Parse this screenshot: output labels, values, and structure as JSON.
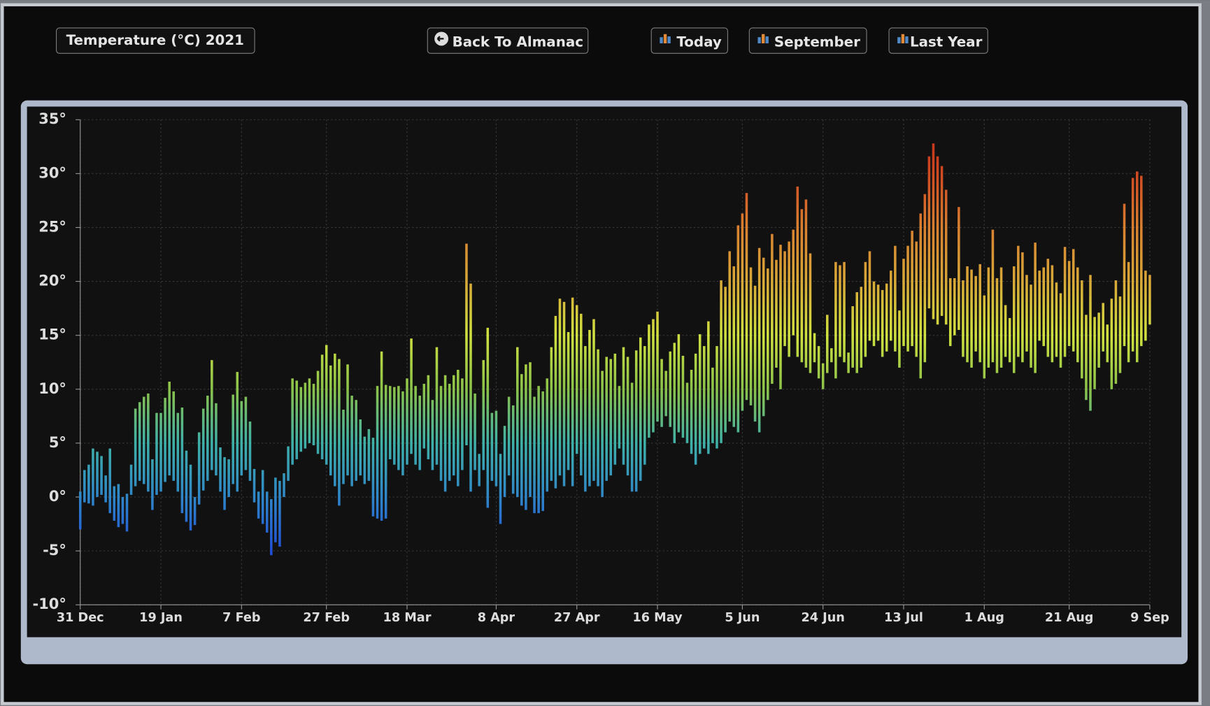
{
  "toolbar": {
    "buttons": [
      "Back To Almanac",
      "Today",
      "September",
      "Last Year"
    ]
  },
  "chart_data": {
    "type": "range-bar",
    "title": "Temperature (°C) 2021",
    "categories": [
      "31 Dec",
      null,
      null,
      null,
      null,
      null,
      null,
      null,
      null,
      null,
      null,
      null,
      null,
      null,
      null,
      null,
      null,
      null,
      null,
      "19 Jan",
      null,
      null,
      null,
      null,
      null,
      null,
      null,
      null,
      null,
      null,
      null,
      null,
      null,
      null,
      null,
      null,
      null,
      null,
      "7 Feb",
      null,
      null,
      null,
      null,
      null,
      null,
      null,
      null,
      null,
      null,
      null,
      null,
      null,
      null,
      null,
      null,
      null,
      null,
      null,
      "27 Feb",
      null,
      null,
      null,
      null,
      null,
      null,
      null,
      null,
      null,
      null,
      null,
      null,
      null,
      null,
      null,
      null,
      null,
      null,
      "18 Mar",
      null,
      null,
      null,
      null,
      null,
      null,
      null,
      null,
      null,
      null,
      null,
      null,
      null,
      null,
      null,
      null,
      null,
      null,
      null,
      null,
      "8 Apr",
      null,
      null,
      null,
      null,
      null,
      null,
      null,
      null,
      null,
      null,
      null,
      null,
      null,
      null,
      null,
      null,
      null,
      null,
      "27 Apr",
      null,
      null,
      null,
      null,
      null,
      null,
      null,
      null,
      null,
      null,
      null,
      null,
      null,
      null,
      null,
      null,
      null,
      null,
      "16 May",
      null,
      null,
      null,
      null,
      null,
      null,
      null,
      null,
      null,
      null,
      null,
      null,
      null,
      null,
      null,
      null,
      null,
      null,
      null,
      "5 Jun",
      null,
      null,
      null,
      null,
      null,
      null,
      null,
      null,
      null,
      null,
      null,
      null,
      null,
      null,
      null,
      null,
      null,
      null,
      "24 Jun",
      null,
      null,
      null,
      null,
      null,
      null,
      null,
      null,
      null,
      null,
      null,
      null,
      null,
      null,
      null,
      null,
      null,
      null,
      "13 Jul",
      null,
      null,
      null,
      null,
      null,
      null,
      null,
      null,
      null,
      null,
      null,
      null,
      null,
      null,
      null,
      null,
      null,
      null,
      "1 Aug",
      null,
      null,
      null,
      null,
      null,
      null,
      null,
      null,
      null,
      null,
      null,
      null,
      null,
      null,
      null,
      null,
      null,
      null,
      null,
      "21 Aug",
      null,
      null,
      null,
      null,
      null,
      null,
      null,
      null,
      null,
      null,
      null,
      null,
      null,
      null,
      null,
      null,
      null,
      null,
      "9 Sep"
    ],
    "low": [
      -3,
      -0.5,
      -0.6,
      -0.8,
      0,
      0.2,
      -0.5,
      -1.5,
      -2.2,
      -2.8,
      -2.5,
      -3.2,
      0.2,
      1,
      1.5,
      1.2,
      0.5,
      -1.2,
      0.2,
      0.5,
      1.4,
      2,
      1.5,
      0.5,
      -1.5,
      -2.3,
      -3.1,
      -2.6,
      -0.7,
      0.6,
      1.5,
      2.5,
      2,
      0.5,
      -1.2,
      0,
      1.2,
      0.5,
      2,
      2.5,
      1.5,
      -0.5,
      -2,
      -2.5,
      -3.3,
      -5.4,
      -4.2,
      -4.6,
      0,
      1.5,
      3,
      3.5,
      4.2,
      4.5,
      5,
      4.8,
      4,
      3.5,
      3,
      2,
      1,
      -0.8,
      1.2,
      2,
      1,
      1.5,
      2,
      1.2,
      1.5,
      -1.8,
      -2,
      -2.2,
      -2,
      3.5,
      3,
      2.5,
      2,
      3,
      4,
      3,
      2.5,
      4.5,
      3.5,
      2.5,
      3,
      1.5,
      0.5,
      1.5,
      2,
      1,
      2.5,
      4.8,
      0.5,
      2.5,
      1,
      2.5,
      -1,
      1.5,
      1,
      -2.5,
      0,
      2,
      0.3,
      0,
      -0.8,
      -1.2,
      0,
      -1.5,
      -1.5,
      -1.3,
      0.5,
      1.5,
      0.8,
      2,
      1,
      2.5,
      1,
      4,
      2,
      0.5,
      1,
      1.5,
      1,
      0,
      1.5,
      2,
      3,
      4.5,
      3,
      2,
      0.5,
      0.5,
      1.5,
      3,
      5.5,
      6,
      7,
      6.5,
      7.5,
      6.5,
      5,
      6,
      5.5,
      5,
      4,
      3,
      4,
      4.5,
      4,
      5,
      4.5,
      5,
      6,
      7,
      6.5,
      6,
      8,
      9,
      8.5,
      7,
      6,
      7.5,
      9,
      10.5,
      12,
      10,
      14,
      13,
      15,
      13,
      12.5,
      12,
      11.5,
      12.5,
      11,
      10,
      11.5,
      12.5,
      11,
      13,
      12.5,
      11.5,
      12,
      11.5,
      12,
      13,
      14.5,
      14,
      14.5,
      13,
      13.5,
      14.5,
      13.5,
      12,
      14,
      13.5,
      14,
      13,
      11,
      12.5,
      17.5,
      16.5,
      16,
      16.8,
      16,
      14,
      15,
      15.5,
      13,
      12.5,
      12,
      13.5,
      12.5,
      11,
      12,
      12.5,
      11.5,
      12,
      13,
      12.5,
      11.5,
      13,
      12.5,
      13.5,
      12,
      11.5,
      14.5,
      14,
      13,
      12.5,
      13,
      12,
      13,
      14,
      13.5,
      12.5,
      11,
      9,
      8,
      10,
      12,
      13.5,
      12.5,
      10,
      10.5,
      11.5,
      14,
      12.5,
      13.5,
      12.5,
      14,
      14.5,
      16
    ],
    "high": [
      0.5,
      2.5,
      3,
      4.5,
      4.2,
      3.8,
      2,
      4.5,
      1,
      1.2,
      0,
      0.3,
      3,
      8.2,
      8.8,
      9.3,
      9.6,
      3.5,
      7.8,
      7.8,
      9.2,
      10.7,
      9.8,
      7.8,
      8.3,
      4.3,
      3,
      0,
      6,
      8.2,
      9.4,
      12.7,
      8.7,
      4.6,
      3.7,
      3.5,
      9.5,
      11.6,
      8.9,
      9.3,
      7,
      2.6,
      0.5,
      2.5,
      0.5,
      -0.2,
      1.8,
      1.5,
      2.2,
      4.7,
      11,
      10.8,
      10.2,
      10.6,
      11,
      10.5,
      11.7,
      13.2,
      14.1,
      12.2,
      13.3,
      12.8,
      8.1,
      12.3,
      9.4,
      9,
      7.2,
      5.6,
      6.3,
      5.5,
      10.3,
      13.5,
      10.4,
      10.3,
      10.2,
      10.3,
      9.8,
      11,
      14.7,
      10.3,
      9.4,
      10.5,
      11.3,
      9,
      13.9,
      10.3,
      11.3,
      10.5,
      11.3,
      11.8,
      11,
      23.5,
      19.8,
      9.6,
      4,
      12.7,
      15.7,
      7.8,
      8,
      4,
      6.6,
      9.3,
      8.5,
      13.9,
      11.4,
      12.3,
      12.5,
      9.3,
      10.3,
      9.8,
      11,
      13.9,
      16.8,
      18.4,
      18.1,
      15.3,
      18.5,
      17.8,
      17,
      14,
      15.5,
      16.5,
      13.7,
      11.7,
      13,
      12.8,
      13.3,
      10.3,
      13.9,
      13,
      10.6,
      13.6,
      14.8,
      14,
      16,
      16.5,
      17.2,
      12.8,
      11.7,
      13.5,
      14.3,
      15.1,
      13.1,
      10.6,
      11.8,
      13.3,
      15.1,
      14,
      16.3,
      12,
      14,
      20.1,
      19.5,
      22.8,
      21.4,
      25.2,
      26.3,
      28.2,
      21.3,
      19.6,
      23.1,
      22.2,
      21.2,
      24.4,
      22,
      23.4,
      22.8,
      23.7,
      24.8,
      28.8,
      26.7,
      27.6,
      22.6,
      15.2,
      14,
      12.4,
      16.9,
      13.8,
      21.8,
      21.5,
      21.8,
      13.4,
      17.7,
      19,
      19.5,
      21.8,
      22.8,
      20,
      19.7,
      19.2,
      19.8,
      21,
      23.3,
      17.3,
      22.1,
      23.3,
      24.7,
      23.7,
      26.3,
      28.1,
      31.6,
      32.8,
      31.6,
      30.7,
      28.5,
      20.3,
      20.3,
      26.9,
      20.1,
      21.4,
      21.1,
      20.5,
      21.6,
      18.7,
      21.3,
      24.8,
      20.3,
      21.3,
      17.8,
      16.6,
      21.4,
      23.3,
      22.7,
      20.6,
      19.7,
      23.6,
      21,
      21.3,
      22.1,
      21.5,
      19.9,
      18.9,
      23.2,
      21.9,
      23,
      21.3,
      20.1,
      16.9,
      20.6,
      16.7,
      17.1,
      18,
      16,
      18.4,
      20.1,
      18.6,
      27.2,
      21.8,
      29.6,
      30.2,
      29.8,
      21,
      20.6
    ],
    "colors": [
      "#1a3ad0",
      "#2150d8",
      "#2f86c8",
      "#3fb0a8",
      "#8ac24a",
      "#d0e040",
      "#d8a838",
      "#d88030",
      "#d04a22",
      "#c02818"
    ],
    "ylim": [
      -10,
      35
    ],
    "yticks": [
      {
        "value": -10,
        "label": "-10°"
      },
      {
        "value": -5,
        "label": "-5°"
      },
      {
        "value": 0,
        "label": "0°"
      },
      {
        "value": 5,
        "label": "5°"
      },
      {
        "value": 10,
        "label": "10°"
      },
      {
        "value": 15,
        "label": "15°"
      },
      {
        "value": 20,
        "label": "20°"
      },
      {
        "value": 25,
        "label": "25°"
      },
      {
        "value": 30,
        "label": "30°"
      },
      {
        "value": 35,
        "label": "35°"
      }
    ],
    "grid": true
  }
}
